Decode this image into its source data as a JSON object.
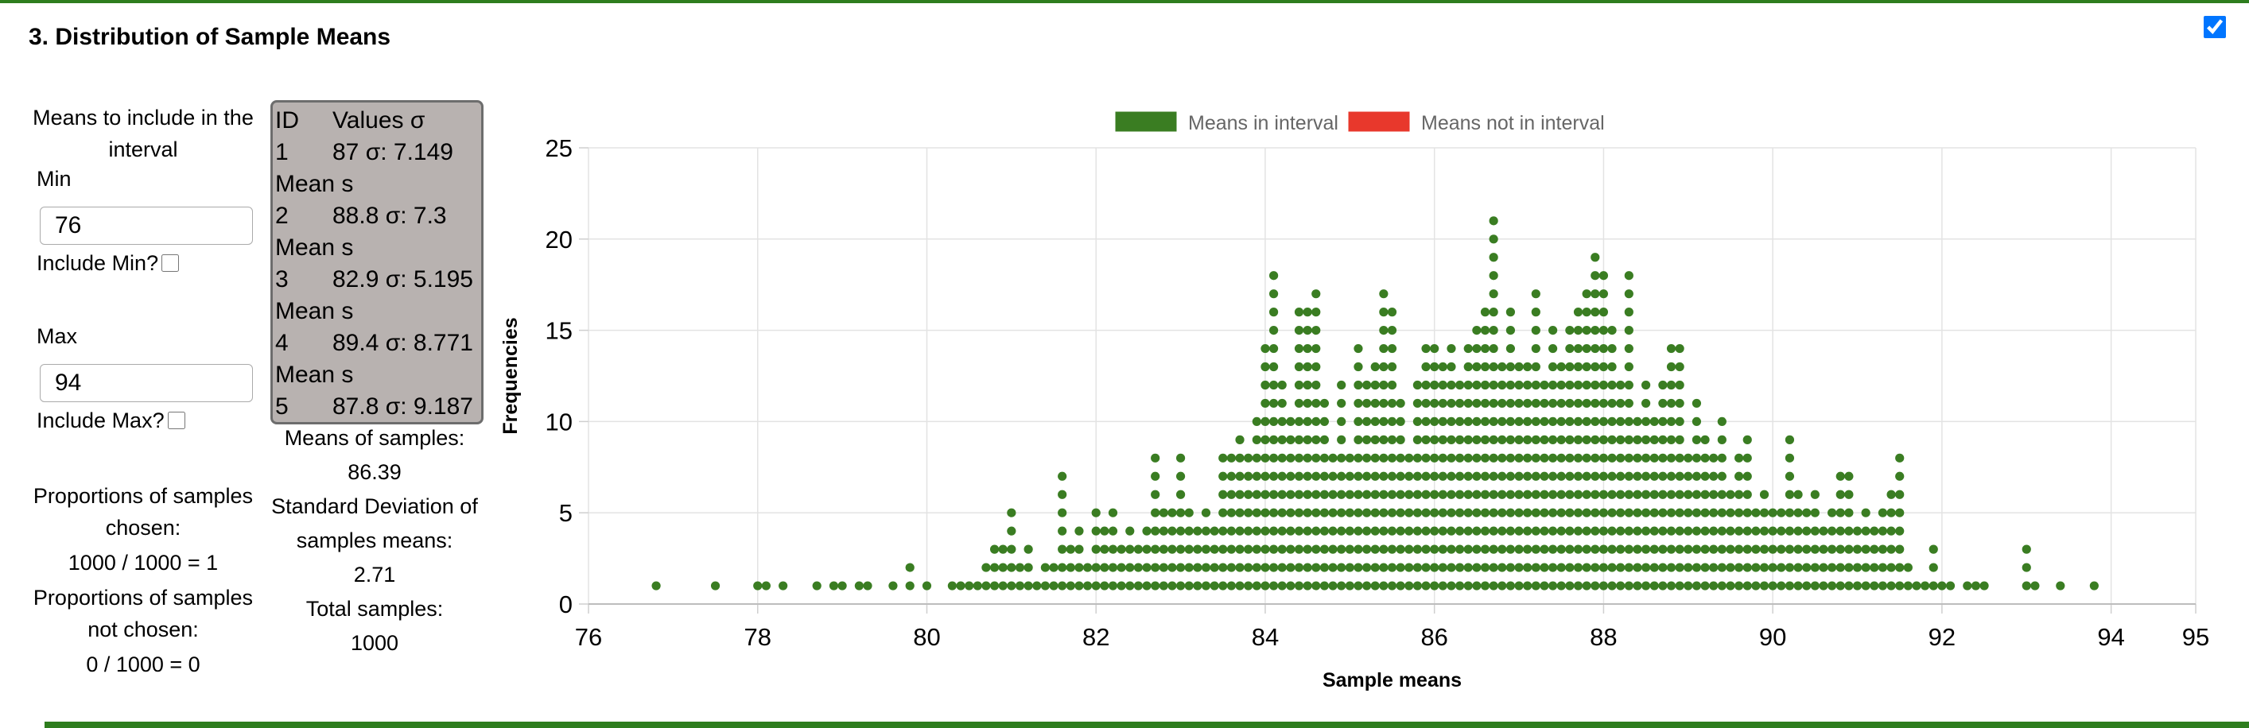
{
  "section": {
    "title": "3. Distribution of Sample Means"
  },
  "controls": {
    "heading": "Means to include in the interval",
    "min_label": "Min",
    "min_value": "76",
    "include_min_label": "Include Min?",
    "max_label": "Max",
    "max_value": "94",
    "include_max_label": "Include Max?",
    "prop_chosen_label": "Proportions of samples chosen:",
    "prop_chosen_value": "1000 / 1000 = 1",
    "prop_not_chosen_label": "Proportions of samples not chosen:",
    "prop_not_chosen_value": "0 / 1000 = 0"
  },
  "samples": {
    "header_id": "ID",
    "header_values": "Values σ",
    "rows": [
      {
        "id": "1",
        "value": "87 σ: 7.149",
        "note": "Mean s"
      },
      {
        "id": "2",
        "value": "88.8 σ: 7.3",
        "note": "Mean s"
      },
      {
        "id": "3",
        "value": "82.9 σ: 5.195",
        "note": "Mean s"
      },
      {
        "id": "4",
        "value": "89.4 σ: 8.771",
        "note": "Mean s"
      },
      {
        "id": "5",
        "value": "87.8 σ: 9.187",
        "note": ""
      }
    ]
  },
  "stats": {
    "mean_label": "Means of samples:",
    "mean_value": "86.39",
    "sd_label": "Standard Deviation of samples means:",
    "sd_value": "2.71",
    "total_label": "Total samples:",
    "total_value": "1000"
  },
  "chart_data": {
    "type": "scatter",
    "xlabel": "Sample means",
    "ylabel": "Frequencies",
    "xlim": [
      76,
      95
    ],
    "ylim": [
      0,
      25
    ],
    "x_ticks": [
      76,
      78,
      80,
      82,
      84,
      86,
      88,
      90,
      92,
      94,
      95
    ],
    "y_ticks": [
      0,
      5,
      10,
      15,
      20,
      25
    ],
    "grid": true,
    "legend_position": "top",
    "legend": [
      {
        "label": "Means in interval",
        "color": "#3a7d22"
      },
      {
        "label": "Means not in interval",
        "color": "#e8382c"
      }
    ],
    "in_interval_color": "#3a7d22",
    "note": "Each dot is a stack level: a column at sample mean x with count n shows dots at y = 1..n.",
    "columns": [
      [
        76.8,
        1
      ],
      [
        77.5,
        1
      ],
      [
        78.0,
        1
      ],
      [
        78.1,
        1
      ],
      [
        78.3,
        1
      ],
      [
        78.7,
        1
      ],
      [
        78.9,
        1
      ],
      [
        79.0,
        1
      ],
      [
        79.2,
        1
      ],
      [
        79.3,
        1
      ],
      [
        79.6,
        1
      ],
      [
        79.8,
        2
      ],
      [
        80.0,
        1
      ],
      [
        80.3,
        1
      ],
      [
        80.4,
        1
      ],
      [
        80.5,
        1
      ],
      [
        80.6,
        1
      ],
      [
        80.7,
        2
      ],
      [
        80.8,
        3
      ],
      [
        80.9,
        3
      ],
      [
        81.0,
        5
      ],
      [
        81.1,
        2
      ],
      [
        81.2,
        3
      ],
      [
        81.3,
        1
      ],
      [
        81.4,
        2
      ],
      [
        81.5,
        2
      ],
      [
        81.6,
        7
      ],
      [
        81.7,
        3
      ],
      [
        81.8,
        4
      ],
      [
        81.9,
        2
      ],
      [
        82.0,
        5
      ],
      [
        82.1,
        4
      ],
      [
        82.2,
        5
      ],
      [
        82.3,
        3
      ],
      [
        82.4,
        4
      ],
      [
        82.5,
        3
      ],
      [
        82.6,
        4
      ],
      [
        82.7,
        8
      ],
      [
        82.8,
        5
      ],
      [
        82.9,
        5
      ],
      [
        83.0,
        8
      ],
      [
        83.1,
        5
      ],
      [
        83.2,
        4
      ],
      [
        83.3,
        5
      ],
      [
        83.4,
        4
      ],
      [
        83.5,
        8
      ],
      [
        83.6,
        8
      ],
      [
        83.7,
        9
      ],
      [
        83.8,
        8
      ],
      [
        83.9,
        10
      ],
      [
        84.0,
        14
      ],
      [
        84.1,
        18
      ],
      [
        84.2,
        12
      ],
      [
        84.3,
        10
      ],
      [
        84.4,
        16
      ],
      [
        84.5,
        16
      ],
      [
        84.6,
        17
      ],
      [
        84.7,
        11
      ],
      [
        84.8,
        8
      ],
      [
        84.9,
        12
      ],
      [
        85.0,
        8
      ],
      [
        85.1,
        14
      ],
      [
        85.2,
        12
      ],
      [
        85.3,
        13
      ],
      [
        85.4,
        17
      ],
      [
        85.5,
        16
      ],
      [
        85.6,
        11
      ],
      [
        85.7,
        8
      ],
      [
        85.8,
        12
      ],
      [
        85.9,
        14
      ],
      [
        86.0,
        14
      ],
      [
        86.1,
        13
      ],
      [
        86.2,
        14
      ],
      [
        86.3,
        12
      ],
      [
        86.4,
        14
      ],
      [
        86.5,
        15
      ],
      [
        86.6,
        16
      ],
      [
        86.7,
        21
      ],
      [
        86.8,
        13
      ],
      [
        86.9,
        16
      ],
      [
        87.0,
        13
      ],
      [
        87.1,
        13
      ],
      [
        87.2,
        17
      ],
      [
        87.3,
        12
      ],
      [
        87.4,
        15
      ],
      [
        87.5,
        13
      ],
      [
        87.6,
        15
      ],
      [
        87.7,
        16
      ],
      [
        87.8,
        17
      ],
      [
        87.9,
        19
      ],
      [
        88.0,
        18
      ],
      [
        88.1,
        15
      ],
      [
        88.2,
        12
      ],
      [
        88.3,
        18
      ],
      [
        88.4,
        10
      ],
      [
        88.5,
        12
      ],
      [
        88.6,
        10
      ],
      [
        88.7,
        12
      ],
      [
        88.8,
        14
      ],
      [
        88.9,
        14
      ],
      [
        89.0,
        8
      ],
      [
        89.1,
        11
      ],
      [
        89.2,
        9
      ],
      [
        89.3,
        8
      ],
      [
        89.4,
        10
      ],
      [
        89.5,
        6
      ],
      [
        89.6,
        8
      ],
      [
        89.7,
        9
      ],
      [
        89.8,
        5
      ],
      [
        89.9,
        6
      ],
      [
        90.0,
        5
      ],
      [
        90.1,
        5
      ],
      [
        90.2,
        9
      ],
      [
        90.3,
        6
      ],
      [
        90.4,
        5
      ],
      [
        90.5,
        6
      ],
      [
        90.6,
        4
      ],
      [
        90.7,
        5
      ],
      [
        90.8,
        7
      ],
      [
        90.9,
        7
      ],
      [
        91.0,
        4
      ],
      [
        91.1,
        5
      ],
      [
        91.2,
        4
      ],
      [
        91.3,
        5
      ],
      [
        91.4,
        6
      ],
      [
        91.5,
        8
      ],
      [
        91.6,
        2
      ],
      [
        91.7,
        1
      ],
      [
        91.8,
        1
      ],
      [
        91.9,
        3
      ],
      [
        92.0,
        1
      ],
      [
        92.1,
        1
      ],
      [
        92.3,
        1
      ],
      [
        92.4,
        1
      ],
      [
        92.5,
        1
      ],
      [
        93.0,
        3
      ],
      [
        93.1,
        1
      ],
      [
        93.4,
        1
      ],
      [
        93.8,
        1
      ]
    ]
  }
}
